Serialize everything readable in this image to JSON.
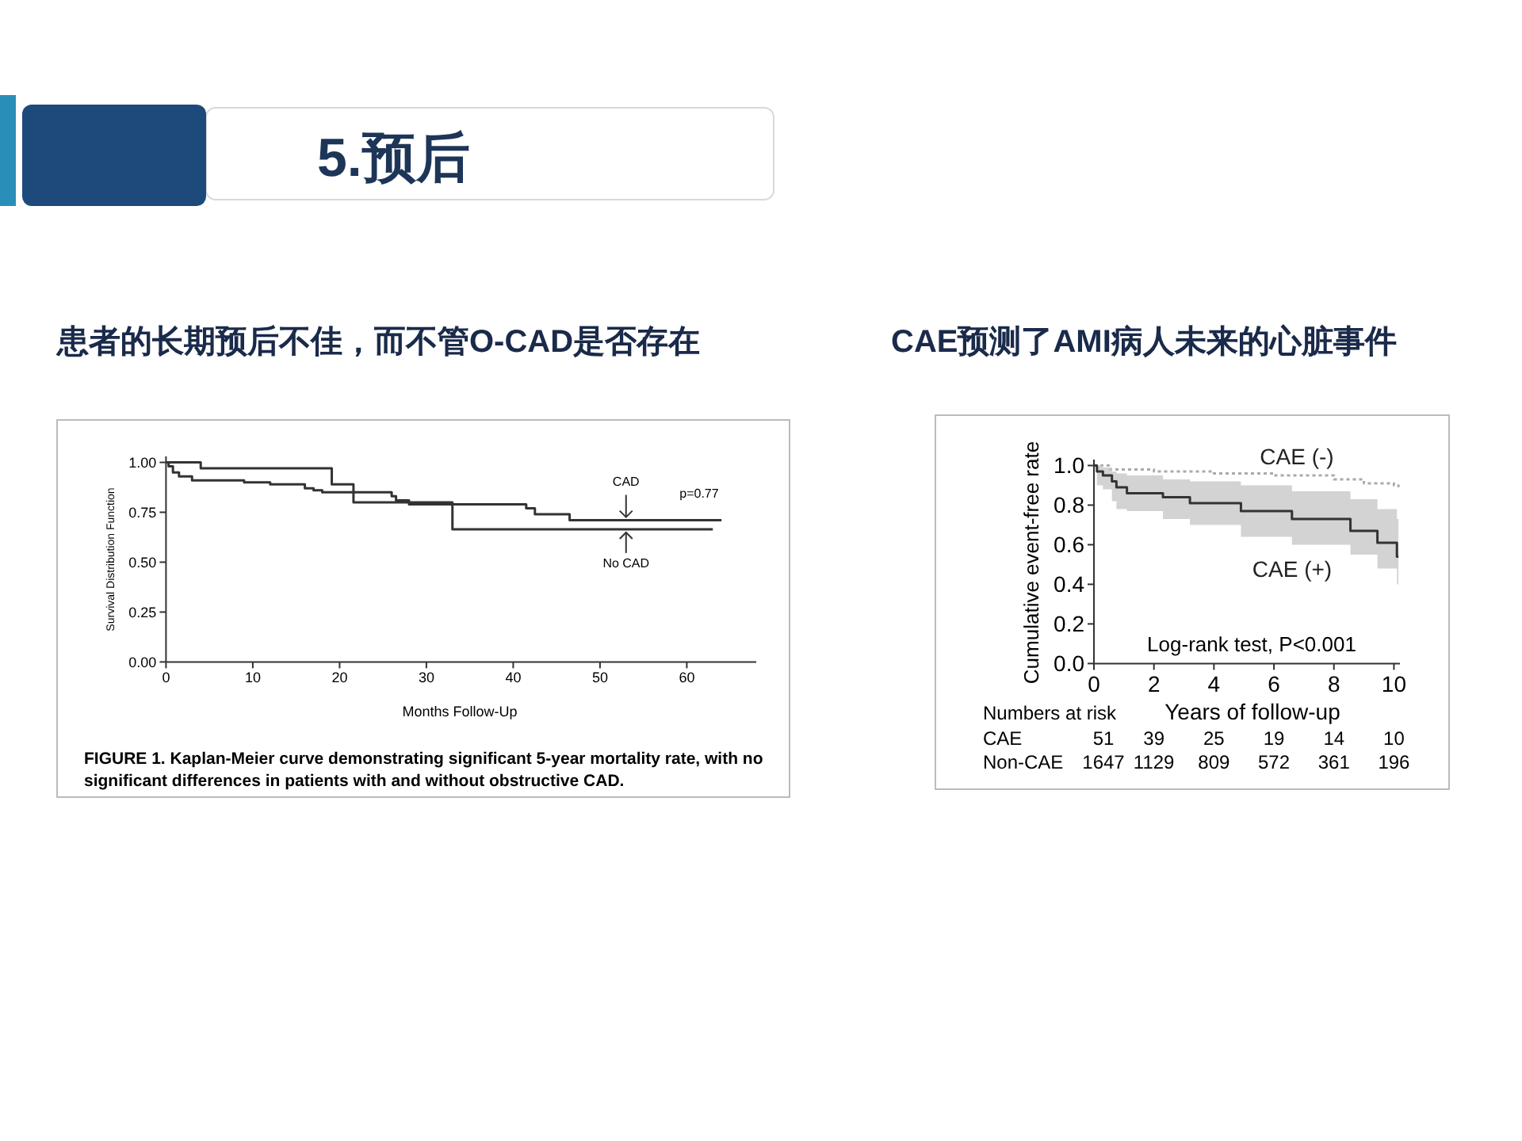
{
  "chart_data": [
    {
      "type": "step",
      "title": "患者的长期预后不佳，而不管O-CAD是否存在",
      "xlabel": "Months Follow-Up",
      "ylabel": "Survival Distribution Function",
      "xlim": [
        0,
        68
      ],
      "ylim": [
        0,
        1.03
      ],
      "xticks": [
        0,
        10,
        20,
        30,
        40,
        50,
        60
      ],
      "yticks": [
        {
          "value": 0,
          "label": "0.00"
        },
        {
          "value": 0.25,
          "label": "0.25"
        },
        {
          "value": 0.5,
          "label": "0.50"
        },
        {
          "value": 0.75,
          "label": "0.75"
        },
        {
          "value": 1,
          "label": "1.00"
        }
      ],
      "series": [
        {
          "name": "CAD",
          "color": "#333333",
          "x": [
            0,
            0.3,
            0.8,
            1.5,
            3,
            9,
            12,
            16,
            17,
            18,
            26,
            26.5,
            28,
            41.5,
            42.5,
            46.5,
            64
          ],
          "values": [
            1.0,
            0.98,
            0.95,
            0.93,
            0.91,
            0.9,
            0.89,
            0.87,
            0.86,
            0.85,
            0.83,
            0.81,
            0.79,
            0.77,
            0.74,
            0.71,
            0.71
          ]
        },
        {
          "name": "No CAD",
          "color": "#333333",
          "x": [
            0,
            4,
            19.1,
            21.6,
            33,
            63
          ],
          "values": [
            1.0,
            0.97,
            0.89,
            0.8,
            0.665,
            0.665
          ]
        }
      ],
      "annotations": [
        "p=0.77",
        "FIGURE 1. Kaplan-Meier curve demonstrating significant 5-year mortality rate, with no significant differences in patients with and without obstructive CAD.",
        "5.预后"
      ]
    },
    {
      "type": "step",
      "title": "CAE预测了AMI病人未来的心脏事件",
      "xlabel": "Years of follow-up",
      "ylabel": "Cumulative event-free rate",
      "xlim": [
        0,
        10.2
      ],
      "ylim": [
        0,
        1.03
      ],
      "xticks": [
        0,
        2,
        4,
        6,
        8,
        10
      ],
      "yticks": [
        {
          "value": 0,
          "label": "0.0"
        },
        {
          "value": 0.2,
          "label": "0.2"
        },
        {
          "value": 0.4,
          "label": "0.4"
        },
        {
          "value": 0.6,
          "label": "0.6"
        },
        {
          "value": 0.8,
          "label": "0.8"
        },
        {
          "value": 1,
          "label": "1.0"
        }
      ],
      "series": [
        {
          "name": "CAE (-)",
          "color": "#aaaaaa",
          "line_style": "dotted",
          "x": [
            0,
            0.5,
            2,
            4,
            6,
            8,
            9,
            10,
            10.15
          ],
          "values": [
            1.0,
            0.98,
            0.97,
            0.96,
            0.95,
            0.93,
            0.91,
            0.9,
            0.89
          ]
        },
        {
          "name": "CAE (+)",
          "color": "#333333",
          "line_style": "solid",
          "x": [
            0,
            0.1,
            0.3,
            0.6,
            0.75,
            1.1,
            2.3,
            3.2,
            4.9,
            6.6,
            8.55,
            9.45,
            10.1,
            10.15
          ],
          "values": [
            1.0,
            0.97,
            0.95,
            0.92,
            0.89,
            0.86,
            0.84,
            0.81,
            0.77,
            0.73,
            0.67,
            0.61,
            0.54,
            0.54
          ],
          "lower": [
            1.0,
            0.9,
            0.88,
            0.82,
            0.78,
            0.77,
            0.73,
            0.7,
            0.64,
            0.6,
            0.55,
            0.48,
            0.4,
            0.33
          ],
          "upper": [
            1.0,
            1.0,
            0.99,
            0.97,
            0.96,
            0.95,
            0.93,
            0.92,
            0.9,
            0.87,
            0.83,
            0.78,
            0.73,
            0.73
          ]
        }
      ],
      "annotations": [
        "Log-rank test, P<0.001",
        "Numbers at risk",
        "CAE",
        "51",
        "39",
        "25",
        "19",
        "14",
        "10",
        "Non-CAE",
        "1647",
        "1129",
        "809",
        "572",
        "361",
        "196"
      ]
    }
  ]
}
